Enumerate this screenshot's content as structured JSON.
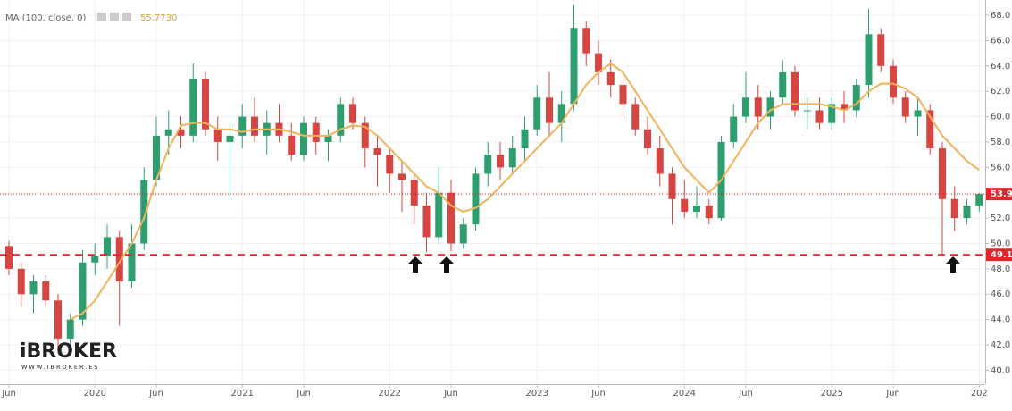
{
  "chart_data": {
    "type": "candlestick",
    "indicator": {
      "name": "MA (100, close, 0)",
      "last_value": 55.773,
      "last_value_label": "55.7730",
      "color": "#f0b35a"
    },
    "watermark": {
      "brand": "iBROKER",
      "url": "WWW.IBROKER.ES"
    },
    "categories": [
      "Jun",
      null,
      null,
      null,
      null,
      null,
      null,
      "2020",
      null,
      null,
      null,
      null,
      "Jun",
      null,
      null,
      null,
      null,
      null,
      null,
      "2021",
      null,
      null,
      null,
      null,
      "Jun",
      null,
      null,
      null,
      null,
      null,
      null,
      "2022",
      null,
      null,
      null,
      null,
      "Jun",
      null,
      null,
      null,
      null,
      null,
      null,
      "2023",
      null,
      null,
      null,
      null,
      "Jun",
      null,
      null,
      null,
      null,
      null,
      null,
      "2024",
      null,
      null,
      null,
      null,
      "Jun",
      null,
      null,
      null,
      null,
      null,
      null,
      "2025",
      null,
      null,
      null,
      null,
      "Jun",
      null,
      null,
      null,
      null,
      null,
      null,
      "202"
    ],
    "up_color": "#2e9e6e",
    "down_color": "#d64541",
    "open": [
      49.8,
      48,
      46,
      47,
      45.5,
      42.5,
      44,
      48.5,
      49,
      50.5,
      47,
      50,
      55,
      58.5,
      59,
      58.5,
      63,
      59,
      58,
      58.5,
      60,
      58.5,
      59.5,
      58.5,
      57,
      59.5,
      58,
      58.5,
      61,
      59.5,
      57.5,
      57,
      55.5,
      55,
      53,
      50.5,
      54,
      50,
      51.5,
      55.5,
      57,
      56,
      57.5,
      59,
      61.5,
      59.5,
      61,
      67,
      65,
      63.5,
      62.5,
      61,
      59,
      57.5,
      55.5,
      53.5,
      52.5,
      53,
      52,
      58,
      60,
      61.5,
      60,
      61.5,
      63.5,
      60.5,
      60.5,
      59.5,
      61,
      60.5,
      62.5,
      66.5,
      64,
      61.5,
      60,
      60.5,
      57.5,
      53.5,
      52,
      53
    ],
    "high": [
      50.2,
      48.5,
      47.5,
      47.5,
      46,
      44.5,
      49.5,
      50,
      51.5,
      51,
      51.5,
      56,
      60,
      60.5,
      60,
      64.2,
      63.5,
      60,
      59.5,
      61,
      61.5,
      60.5,
      61,
      59.5,
      60,
      60,
      59,
      61.5,
      61.5,
      60,
      58.5,
      57.5,
      56.5,
      55.5,
      54,
      56,
      55,
      52,
      56,
      58,
      58,
      58.5,
      60,
      62.5,
      63.5,
      62,
      68.8,
      67.5,
      66,
      64.5,
      63,
      61.5,
      60,
      58.5,
      56,
      55,
      54.5,
      53.5,
      58.5,
      61,
      63.5,
      62.5,
      62,
      64.5,
      64,
      61.5,
      61.5,
      61.5,
      62,
      63,
      68.5,
      67,
      64.5,
      62,
      61.5,
      61,
      58,
      54.5,
      53.5,
      54
    ],
    "low": [
      47.5,
      45,
      44.5,
      45,
      41.5,
      42,
      43.5,
      47.5,
      48,
      43.5,
      46.5,
      49.5,
      54.5,
      57,
      57.5,
      58,
      58.5,
      56.5,
      53.5,
      57.5,
      58,
      57,
      58,
      56.5,
      56.5,
      57,
      56.5,
      58,
      59,
      56,
      54.5,
      54,
      52.5,
      51.5,
      49.3,
      50,
      49.4,
      49.6,
      51,
      54.5,
      55,
      55.5,
      56.5,
      58.5,
      58.5,
      58,
      60.5,
      64,
      62.5,
      61.5,
      60,
      58.5,
      57,
      54.5,
      51.5,
      52,
      52,
      51.5,
      51.8,
      57.5,
      59.5,
      59,
      59,
      61,
      60,
      59,
      59,
      59,
      59.5,
      60,
      61.5,
      63.5,
      61,
      59.5,
      58.5,
      57,
      49.1,
      51,
      51.5,
      52.5
    ],
    "close": [
      48,
      46,
      47,
      45.5,
      42.5,
      44,
      48.5,
      49,
      50.5,
      47,
      50,
      55,
      58.5,
      59,
      58.5,
      63,
      59,
      58,
      58.5,
      60,
      58.5,
      59.5,
      58.5,
      57,
      59.5,
      58,
      58.5,
      61,
      59.5,
      57.5,
      57,
      55.5,
      55,
      53,
      50.5,
      54,
      50,
      51.5,
      55.5,
      57,
      56,
      57.5,
      59,
      61.5,
      59.5,
      61,
      67,
      65,
      63.5,
      62.5,
      61,
      59,
      57.5,
      55.5,
      53.5,
      52.5,
      53,
      52,
      58,
      60,
      61.5,
      60,
      61.5,
      63.5,
      60.5,
      60.5,
      59.5,
      61,
      60.5,
      62.5,
      66.5,
      64,
      61.5,
      60,
      60.5,
      57.5,
      53.5,
      52,
      53,
      53.9
    ],
    "ma": [
      null,
      null,
      null,
      null,
      null,
      44,
      44.5,
      45.5,
      47,
      48.5,
      50,
      52,
      55,
      57.5,
      59.3,
      59.5,
      59.5,
      59,
      59,
      58.8,
      59,
      59,
      59,
      58.8,
      58.5,
      58.5,
      58.5,
      59,
      59.3,
      59.2,
      58.5,
      57.5,
      56.5,
      55.5,
      54.5,
      54,
      53,
      52.5,
      52.8,
      53.5,
      54.5,
      55.5,
      56.5,
      57.5,
      58.5,
      59.5,
      61,
      62.5,
      63.5,
      64.2,
      63.5,
      62,
      60.5,
      59,
      57.5,
      56,
      55,
      54,
      55,
      56.5,
      58,
      59.5,
      60.5,
      61,
      61,
      61,
      61,
      60.8,
      60.5,
      61,
      62,
      62.6,
      62.6,
      62.2,
      61.5,
      60,
      58.5,
      57.5,
      56.5,
      55.8
    ],
    "price_lines": [
      {
        "value": 53.9,
        "style": "dotted"
      },
      {
        "value": 49.1,
        "style": "dashed"
      }
    ],
    "price_line_color": "#e0262b",
    "ylim": [
      38.9,
      69.2
    ],
    "yticks": [
      {
        "value": 40,
        "label": "40.0"
      },
      {
        "value": 42,
        "label": "42.0"
      },
      {
        "value": 44,
        "label": "44.0"
      },
      {
        "value": 46,
        "label": "46.0"
      },
      {
        "value": 48,
        "label": "48.0"
      },
      {
        "value": 50,
        "label": "50.0"
      },
      {
        "value": 52,
        "label": "52.0"
      },
      {
        "value": 54,
        "label": "54.0"
      },
      {
        "value": 56,
        "label": "56.0"
      },
      {
        "value": 58,
        "label": "58.0"
      },
      {
        "value": 60,
        "label": "60.0"
      },
      {
        "value": 62,
        "label": "62.0"
      },
      {
        "value": 64,
        "label": "64.0"
      },
      {
        "value": 66,
        "label": "66.0"
      },
      {
        "value": 68,
        "label": "68.0"
      }
    ],
    "grid": true
  }
}
